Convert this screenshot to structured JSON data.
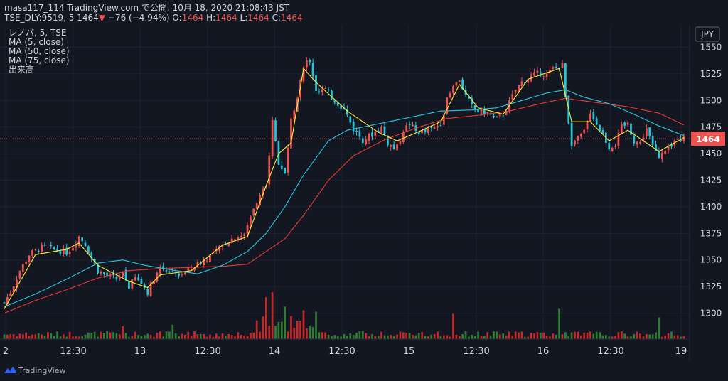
{
  "header": {
    "line1": "masa117_114 TradingView.com で公開, 10月 18, 2020 21:08:43 JST",
    "line2_prefix": "TSE_DLY:9519, 5",
    "price": "1464",
    "arrow": "▼",
    "change": "−76 (−4.94%)",
    "o_label": "O:",
    "o": "1464",
    "h_label": "H:",
    "h": "1464",
    "l_label": "L:",
    "l": "1464",
    "c_label": "C:",
    "c": "1464"
  },
  "legend": {
    "symbol": "レノバ, 5, TSE",
    "ma5": "MA (5, close)",
    "ma50": "MA (50, close)",
    "ma75": "MA (75, close)",
    "volume": "出来高"
  },
  "footer": {
    "brand": "TradingView"
  },
  "colors": {
    "bg": "#131722",
    "grid": "#1e2230",
    "up": "#ef5350",
    "down": "#26c6da",
    "vol_up": "#c62828",
    "vol_down": "#2e7d32",
    "ma5": "#ffeb3b",
    "ma50": "#26c6da",
    "ma75": "#e53935",
    "axis_text": "#d1d4dc",
    "price_tag": "#ef5350"
  },
  "chart_data": {
    "type": "candlestick",
    "currency": "JPY",
    "last_price": 1464,
    "ylim": [
      1283,
      1565
    ],
    "y_ticks": [
      1300,
      1325,
      1350,
      1375,
      1400,
      1425,
      1450,
      1475,
      1500,
      1525,
      1550
    ],
    "x_ticks": [
      "2",
      "12:30",
      "13",
      "12:30",
      "14",
      "12:30",
      "15",
      "12:30",
      "16",
      "12:30",
      "19"
    ],
    "close_path": [
      [
        0,
        1310
      ],
      [
        2,
        1320
      ],
      [
        5,
        1340
      ],
      [
        8,
        1355
      ],
      [
        12,
        1362
      ],
      [
        16,
        1360
      ],
      [
        20,
        1357
      ],
      [
        22,
        1363
      ],
      [
        24,
        1372
      ],
      [
        26,
        1365
      ],
      [
        28,
        1352
      ],
      [
        30,
        1340
      ],
      [
        33,
        1335
      ],
      [
        36,
        1332
      ],
      [
        38,
        1337
      ],
      [
        40,
        1325
      ],
      [
        42,
        1333
      ],
      [
        44,
        1328
      ],
      [
        46,
        1320
      ],
      [
        48,
        1333
      ],
      [
        50,
        1343
      ],
      [
        53,
        1340
      ],
      [
        56,
        1336
      ],
      [
        59,
        1340
      ],
      [
        62,
        1346
      ],
      [
        65,
        1352
      ],
      [
        68,
        1358
      ],
      [
        71,
        1366
      ],
      [
        74,
        1372
      ],
      [
        77,
        1373
      ],
      [
        80,
        1400
      ],
      [
        82,
        1412
      ],
      [
        84,
        1418
      ],
      [
        86,
        1480
      ],
      [
        88,
        1442
      ],
      [
        90,
        1432
      ],
      [
        92,
        1485
      ],
      [
        94,
        1502
      ],
      [
        96,
        1534
      ],
      [
        98,
        1538
      ],
      [
        100,
        1510
      ],
      [
        103,
        1510
      ],
      [
        106,
        1500
      ],
      [
        109,
        1492
      ],
      [
        112,
        1473
      ],
      [
        115,
        1463
      ],
      [
        118,
        1468
      ],
      [
        121,
        1475
      ],
      [
        123,
        1460
      ],
      [
        125,
        1455
      ],
      [
        126,
        1456
      ],
      [
        128,
        1472
      ],
      [
        130,
        1478
      ],
      [
        132,
        1471
      ],
      [
        135,
        1470
      ],
      [
        138,
        1474
      ],
      [
        140,
        1479
      ],
      [
        142,
        1500
      ],
      [
        144,
        1512
      ],
      [
        146,
        1520
      ],
      [
        148,
        1504
      ],
      [
        150,
        1494
      ],
      [
        152,
        1490
      ],
      [
        155,
        1488
      ],
      [
        158,
        1482
      ],
      [
        160,
        1487
      ],
      [
        162,
        1498
      ],
      [
        164,
        1510
      ],
      [
        166,
        1517
      ],
      [
        168,
        1520
      ],
      [
        170,
        1524
      ],
      [
        172,
        1526
      ],
      [
        174,
        1524
      ],
      [
        176,
        1530
      ],
      [
        178,
        1532
      ],
      [
        179,
        1533
      ],
      [
        180,
        1505
      ],
      [
        181,
        1480
      ],
      [
        182,
        1460
      ],
      [
        184,
        1464
      ],
      [
        186,
        1470
      ],
      [
        188,
        1490
      ],
      [
        190,
        1478
      ],
      [
        192,
        1468
      ],
      [
        194,
        1456
      ],
      [
        196,
        1459
      ],
      [
        198,
        1475
      ],
      [
        200,
        1478
      ],
      [
        202,
        1462
      ],
      [
        204,
        1460
      ],
      [
        206,
        1474
      ],
      [
        208,
        1456
      ],
      [
        210,
        1447
      ],
      [
        212,
        1452
      ],
      [
        214,
        1456
      ],
      [
        216,
        1466
      ],
      [
        218,
        1464
      ]
    ],
    "volume_spikes": {
      "54": 20,
      "84": 58,
      "86": 65,
      "90": 45,
      "92": 32,
      "96": 40,
      "100": 38,
      "144": 35,
      "178": 42,
      "210": 30,
      "38": 18
    },
    "volume_ylim": [
      0,
      70
    ],
    "ma5": [
      [
        0,
        1304
      ],
      [
        10,
        1355
      ],
      [
        20,
        1360
      ],
      [
        24,
        1366
      ],
      [
        30,
        1345
      ],
      [
        40,
        1330
      ],
      [
        46,
        1324
      ],
      [
        50,
        1336
      ],
      [
        60,
        1340
      ],
      [
        70,
        1364
      ],
      [
        78,
        1372
      ],
      [
        84,
        1420
      ],
      [
        88,
        1450
      ],
      [
        92,
        1460
      ],
      [
        96,
        1530
      ],
      [
        100,
        1517
      ],
      [
        110,
        1490
      ],
      [
        120,
        1470
      ],
      [
        126,
        1462
      ],
      [
        134,
        1472
      ],
      [
        140,
        1480
      ],
      [
        146,
        1515
      ],
      [
        152,
        1493
      ],
      [
        160,
        1487
      ],
      [
        168,
        1520
      ],
      [
        178,
        1530
      ],
      [
        182,
        1480
      ],
      [
        188,
        1480
      ],
      [
        194,
        1462
      ],
      [
        200,
        1472
      ],
      [
        210,
        1452
      ],
      [
        218,
        1465
      ]
    ],
    "ma50": [
      [
        0,
        1306
      ],
      [
        10,
        1318
      ],
      [
        20,
        1332
      ],
      [
        30,
        1347
      ],
      [
        38,
        1350
      ],
      [
        45,
        1345
      ],
      [
        55,
        1340
      ],
      [
        62,
        1337
      ],
      [
        70,
        1345
      ],
      [
        78,
        1358
      ],
      [
        84,
        1375
      ],
      [
        90,
        1400
      ],
      [
        96,
        1430
      ],
      [
        104,
        1462
      ],
      [
        110,
        1472
      ],
      [
        120,
        1478
      ],
      [
        130,
        1484
      ],
      [
        140,
        1490
      ],
      [
        150,
        1491
      ],
      [
        158,
        1493
      ],
      [
        166,
        1500
      ],
      [
        174,
        1507
      ],
      [
        180,
        1510
      ],
      [
        186,
        1503
      ],
      [
        194,
        1497
      ],
      [
        202,
        1487
      ],
      [
        210,
        1476
      ],
      [
        218,
        1467
      ]
    ],
    "ma75": [
      [
        0,
        1300
      ],
      [
        10,
        1312
      ],
      [
        20,
        1322
      ],
      [
        30,
        1333
      ],
      [
        40,
        1340
      ],
      [
        50,
        1342
      ],
      [
        60,
        1343
      ],
      [
        70,
        1344
      ],
      [
        78,
        1346
      ],
      [
        84,
        1358
      ],
      [
        90,
        1370
      ],
      [
        96,
        1392
      ],
      [
        104,
        1425
      ],
      [
        112,
        1448
      ],
      [
        122,
        1463
      ],
      [
        132,
        1474
      ],
      [
        142,
        1483
      ],
      [
        152,
        1486
      ],
      [
        162,
        1490
      ],
      [
        172,
        1497
      ],
      [
        180,
        1502
      ],
      [
        190,
        1498
      ],
      [
        200,
        1494
      ],
      [
        210,
        1488
      ],
      [
        218,
        1477
      ]
    ]
  }
}
